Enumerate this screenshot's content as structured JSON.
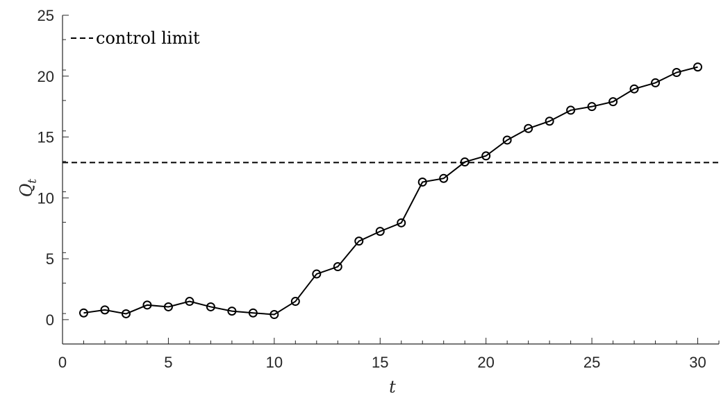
{
  "chart_data": {
    "type": "line",
    "x": [
      1,
      2,
      3,
      4,
      5,
      6,
      7,
      8,
      9,
      10,
      11,
      12,
      13,
      14,
      15,
      16,
      17,
      18,
      19,
      20,
      21,
      22,
      23,
      24,
      25,
      26,
      27,
      28,
      29,
      30
    ],
    "series": [
      {
        "values": [
          0.55,
          0.8,
          0.48,
          1.2,
          1.05,
          1.5,
          1.05,
          0.7,
          0.55,
          0.42,
          1.5,
          3.75,
          4.35,
          6.45,
          7.25,
          7.95,
          11.3,
          11.6,
          12.95,
          13.45,
          14.75,
          15.7,
          16.3,
          17.2,
          17.5,
          17.9,
          18.95,
          19.45,
          20.3,
          20.75
        ],
        "color": "#000000",
        "marker": "circle"
      }
    ],
    "reference_lines": [
      {
        "name": "control limit",
        "y": 12.9,
        "style": "dashed",
        "color": "#000000"
      }
    ],
    "xlabel": "t",
    "ylabel": "Q",
    "ylabel_subscript": "t",
    "xlim": [
      0,
      31
    ],
    "ylim": [
      -2,
      25
    ],
    "xticks": [
      0,
      5,
      10,
      15,
      20,
      25,
      30
    ],
    "yticks": [
      0,
      5,
      10,
      15,
      20,
      25
    ],
    "minor_x_step": 1,
    "minor_y_step": 2.5,
    "grid": false,
    "legend": {
      "entries": [
        "control limit"
      ],
      "placement": "top-left"
    }
  }
}
